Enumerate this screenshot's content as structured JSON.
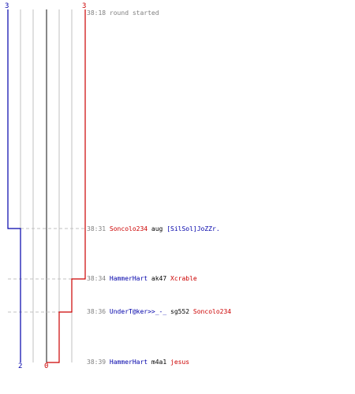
{
  "scores": {
    "blue_start": "3",
    "red_start": "3",
    "blue_end": "2",
    "red_end": "0"
  },
  "colors": {
    "blue": "#0000aa",
    "red": "#cc0000",
    "grid": "#c0c0c0",
    "center": "#606060",
    "time": "#808080"
  },
  "events": [
    {
      "time": "38:18",
      "text": "round started"
    },
    {
      "time": "38:31",
      "killer": "Soncolo234",
      "weapon": "aug",
      "victim": "[SilSol]JoZZr."
    },
    {
      "time": "38:34",
      "killer": "HammerHart",
      "weapon": "ak47",
      "victim": "Xcrable"
    },
    {
      "time": "38:36",
      "killer": "UnderT@ker>>_-_",
      "weapon": "sg552",
      "victim": "Soncolo234"
    },
    {
      "time": "38:39",
      "killer": "HammerHart",
      "weapon": "m4a1",
      "victim": "jesus"
    }
  ]
}
